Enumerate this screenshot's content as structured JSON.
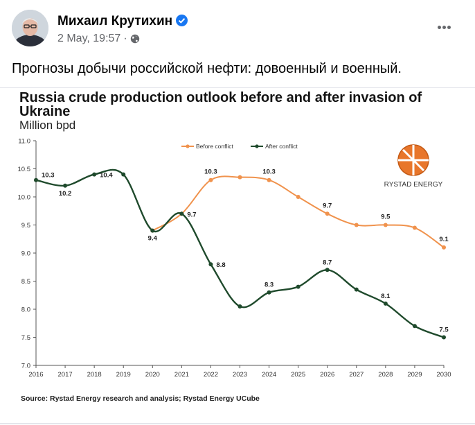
{
  "post": {
    "author": "Михаил Крутихин",
    "date": "2 May, 19:57",
    "separator": "·",
    "text": "Прогнозы добычи российской нефти: довоенный и военный.",
    "icons": {
      "verified": "verified-badge-icon",
      "audience": "globe-icon",
      "more": "more-options-icon"
    },
    "colors": {
      "verified": "#1877f2",
      "meta": "#65676b"
    }
  },
  "chart_data": {
    "type": "line",
    "title": "Russia crude production outlook before and after invasion of Ukraine",
    "ylabel": "Million bpd",
    "source": "Source: Rystad Energy research and analysis;  Rystad Energy UCube",
    "logo_text": "RYSTAD ENERGY",
    "ylim": [
      7.0,
      11.0
    ],
    "yticks": [
      "7.0",
      "7.5",
      "8.0",
      "8.5",
      "9.0",
      "9.5",
      "10.0",
      "10.5",
      "11.0"
    ],
    "x": [
      "2016",
      "2017",
      "2018",
      "2019",
      "2020",
      "2021",
      "2022",
      "2023",
      "2024",
      "2025",
      "2026",
      "2027",
      "2028",
      "2029",
      "2030"
    ],
    "legend_position": "top-center",
    "grid": false,
    "series": [
      {
        "name": "Before conflict",
        "color": "#f0924c",
        "values": [
          10.3,
          10.2,
          10.4,
          10.4,
          9.4,
          9.7,
          10.3,
          10.35,
          10.3,
          10.0,
          9.7,
          9.5,
          9.5,
          9.45,
          9.1
        ],
        "labels": [
          "",
          "",
          "",
          "",
          "",
          "",
          "10.3",
          "",
          "10.3",
          "",
          "9.7",
          "",
          "9.5",
          "",
          "9.1"
        ]
      },
      {
        "name": "After conflict",
        "color": "#1f4a2c",
        "values": [
          10.3,
          10.2,
          10.4,
          10.4,
          9.4,
          9.7,
          8.8,
          8.05,
          8.3,
          8.4,
          8.7,
          8.35,
          8.1,
          7.7,
          7.5
        ],
        "labels": [
          "10.3",
          "10.2",
          "10.4",
          "",
          "9.4",
          "9.7",
          "8.8",
          "",
          "8.3",
          "",
          "8.7",
          "",
          "8.1",
          "",
          "7.5"
        ]
      }
    ]
  }
}
